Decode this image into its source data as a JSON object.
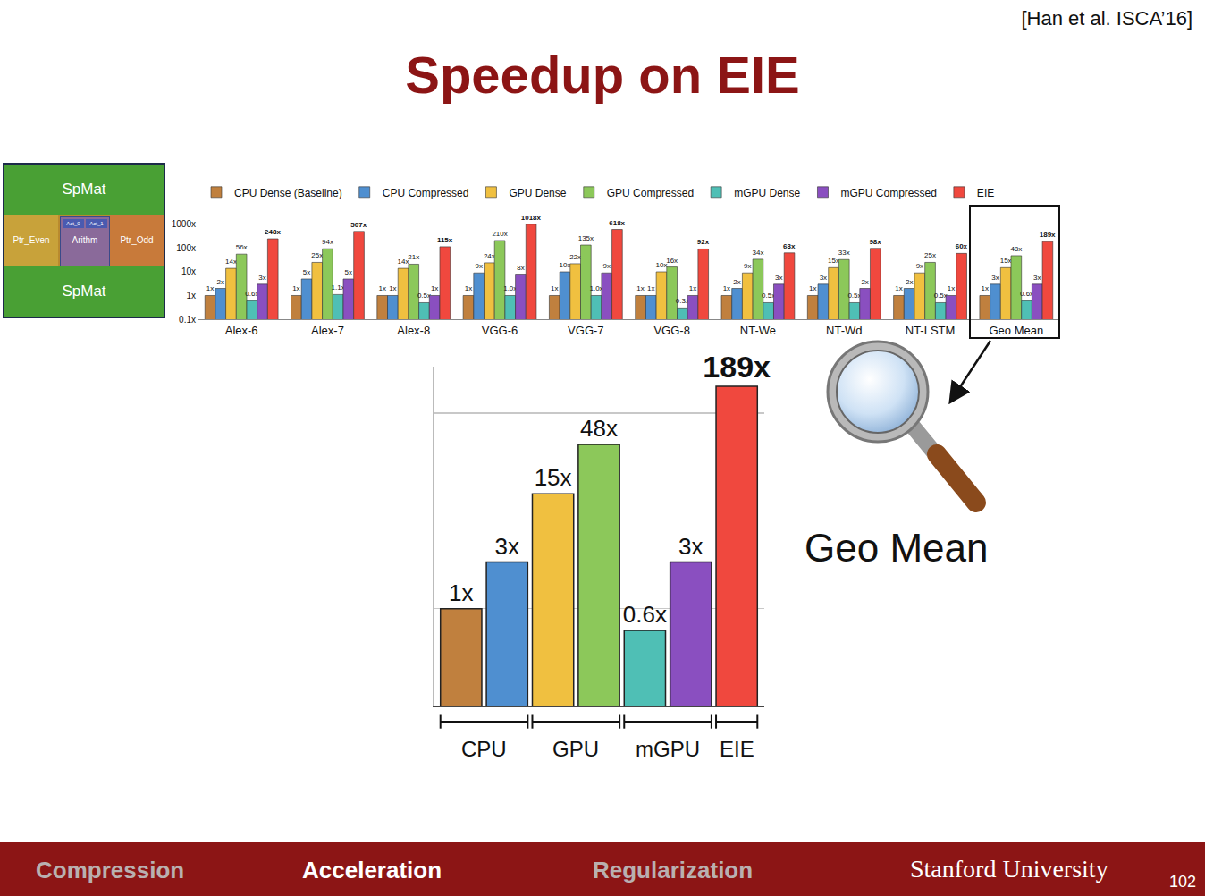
{
  "slide": {
    "citation": "[Han et al. ISCA’16]",
    "title": "Speedup on EIE",
    "die_labels": {
      "top": "SpMat",
      "left": "Ptr_Even",
      "center": "Arithm",
      "right": "Ptr_Odd",
      "act": [
        "Act_0",
        "Act_1"
      ],
      "bottom": "SpMat"
    },
    "callout": "Geo Mean",
    "footer": {
      "sections": [
        "Compression",
        "Acceleration",
        "Regularization"
      ],
      "active": 1,
      "institution": "Stanford University",
      "page": 102
    }
  },
  "chart_data": [
    {
      "type": "bar",
      "categories": [
        "Alex-6",
        "Alex-7",
        "Alex-8",
        "VGG-6",
        "VGG-7",
        "VGG-8",
        "NT-We",
        "NT-Wd",
        "NT-LSTM",
        "Geo Mean"
      ],
      "series": [
        {
          "name": "CPU Dense (Baseline)",
          "color": "#c0803e",
          "values": [
            1,
            1,
            1,
            1,
            1,
            1,
            1,
            1,
            1,
            1
          ],
          "value_labels": [
            "1x",
            "1x",
            "1x",
            "1x",
            "1x",
            "1x",
            "1x",
            "1x",
            "1x",
            "1x"
          ]
        },
        {
          "name": "CPU Compressed",
          "color": "#4f8fd0",
          "values": [
            2,
            5,
            1,
            9,
            10,
            1,
            2,
            3,
            2,
            3
          ],
          "value_labels": [
            "2x",
            "5x",
            "1x",
            "9x",
            "10x",
            "1x",
            "2x",
            "3x",
            "2x",
            "3x"
          ]
        },
        {
          "name": "GPU Dense",
          "color": "#f0c040",
          "values": [
            14,
            25,
            14,
            24,
            22,
            10,
            9,
            15,
            9,
            15
          ],
          "value_labels": [
            "14x",
            "25x",
            "14x",
            "24x",
            "22x",
            "10x",
            "9x",
            "15x",
            "9x",
            "15x"
          ]
        },
        {
          "name": "GPU Compressed",
          "color": "#8cc85a",
          "values": [
            56,
            94,
            21,
            210,
            135,
            16,
            34,
            33,
            25,
            48
          ],
          "value_labels": [
            "56x",
            "94x",
            "21x",
            "210x",
            "135x",
            "16x",
            "34x",
            "33x",
            "25x",
            "48x"
          ]
        },
        {
          "name": "mGPU Dense",
          "color": "#4fbfb5",
          "values": [
            0.6,
            1.1,
            0.5,
            1.0,
            1.0,
            0.3,
            0.5,
            0.5,
            0.5,
            0.6
          ],
          "value_labels": [
            "0.6x",
            "1.1x",
            "0.5x",
            "1.0x",
            "1.0x",
            "0.3x",
            "0.5x",
            "0.5x",
            "0.5x",
            "0.6x"
          ]
        },
        {
          "name": "mGPU Compressed",
          "color": "#8a4fc0",
          "values": [
            3,
            5,
            1,
            8,
            9,
            1,
            3,
            2,
            1,
            3
          ],
          "value_labels": [
            "3x",
            "5x",
            "1x",
            "8x",
            "9x",
            "1x",
            "3x",
            "2x",
            "1x",
            "3x"
          ]
        },
        {
          "name": "EIE",
          "color": "#f0483e",
          "values": [
            248,
            507,
            115,
            1018,
            618,
            92,
            63,
            98,
            60,
            189
          ],
          "value_labels": [
            "248x",
            "507x",
            "115x",
            "1018x",
            "618x",
            "92x",
            "63x",
            "98x",
            "60x",
            "189x"
          ]
        }
      ],
      "ylim": [
        0.1,
        2000
      ],
      "yticks": [
        {
          "value": 0.1,
          "label": "0.1x"
        },
        {
          "value": 1,
          "label": "1x"
        },
        {
          "value": 10,
          "label": "10x"
        },
        {
          "value": 100,
          "label": "100x"
        },
        {
          "value": 1000,
          "label": "1000x"
        }
      ],
      "log": "y",
      "grid": false,
      "legend": "top",
      "data_labels": true
    },
    {
      "type": "bar",
      "categories": [
        null,
        null,
        null,
        null,
        null,
        null,
        null
      ],
      "groups": [
        {
          "label": "CPU",
          "count": 2
        },
        {
          "label": "GPU",
          "count": 2
        },
        {
          "label": "mGPU",
          "count": 2
        },
        {
          "label": "EIE",
          "count": 1
        }
      ],
      "values": [
        1,
        3,
        15,
        48,
        0.6,
        3,
        189
      ],
      "value_labels": [
        "1x",
        "3x",
        "15x",
        "48x",
        "0.6x",
        "3x",
        "189x"
      ],
      "colors": [
        "#c0803e",
        "#4f8fd0",
        "#f0c040",
        "#8cc85a",
        "#4fbfb5",
        "#8a4fc0",
        "#f0483e"
      ],
      "ylim": [
        0.1,
        300
      ],
      "yticks": [
        1,
        10,
        100
      ],
      "log": "y",
      "grid": true,
      "data_labels": true,
      "tick_labels": false
    }
  ]
}
